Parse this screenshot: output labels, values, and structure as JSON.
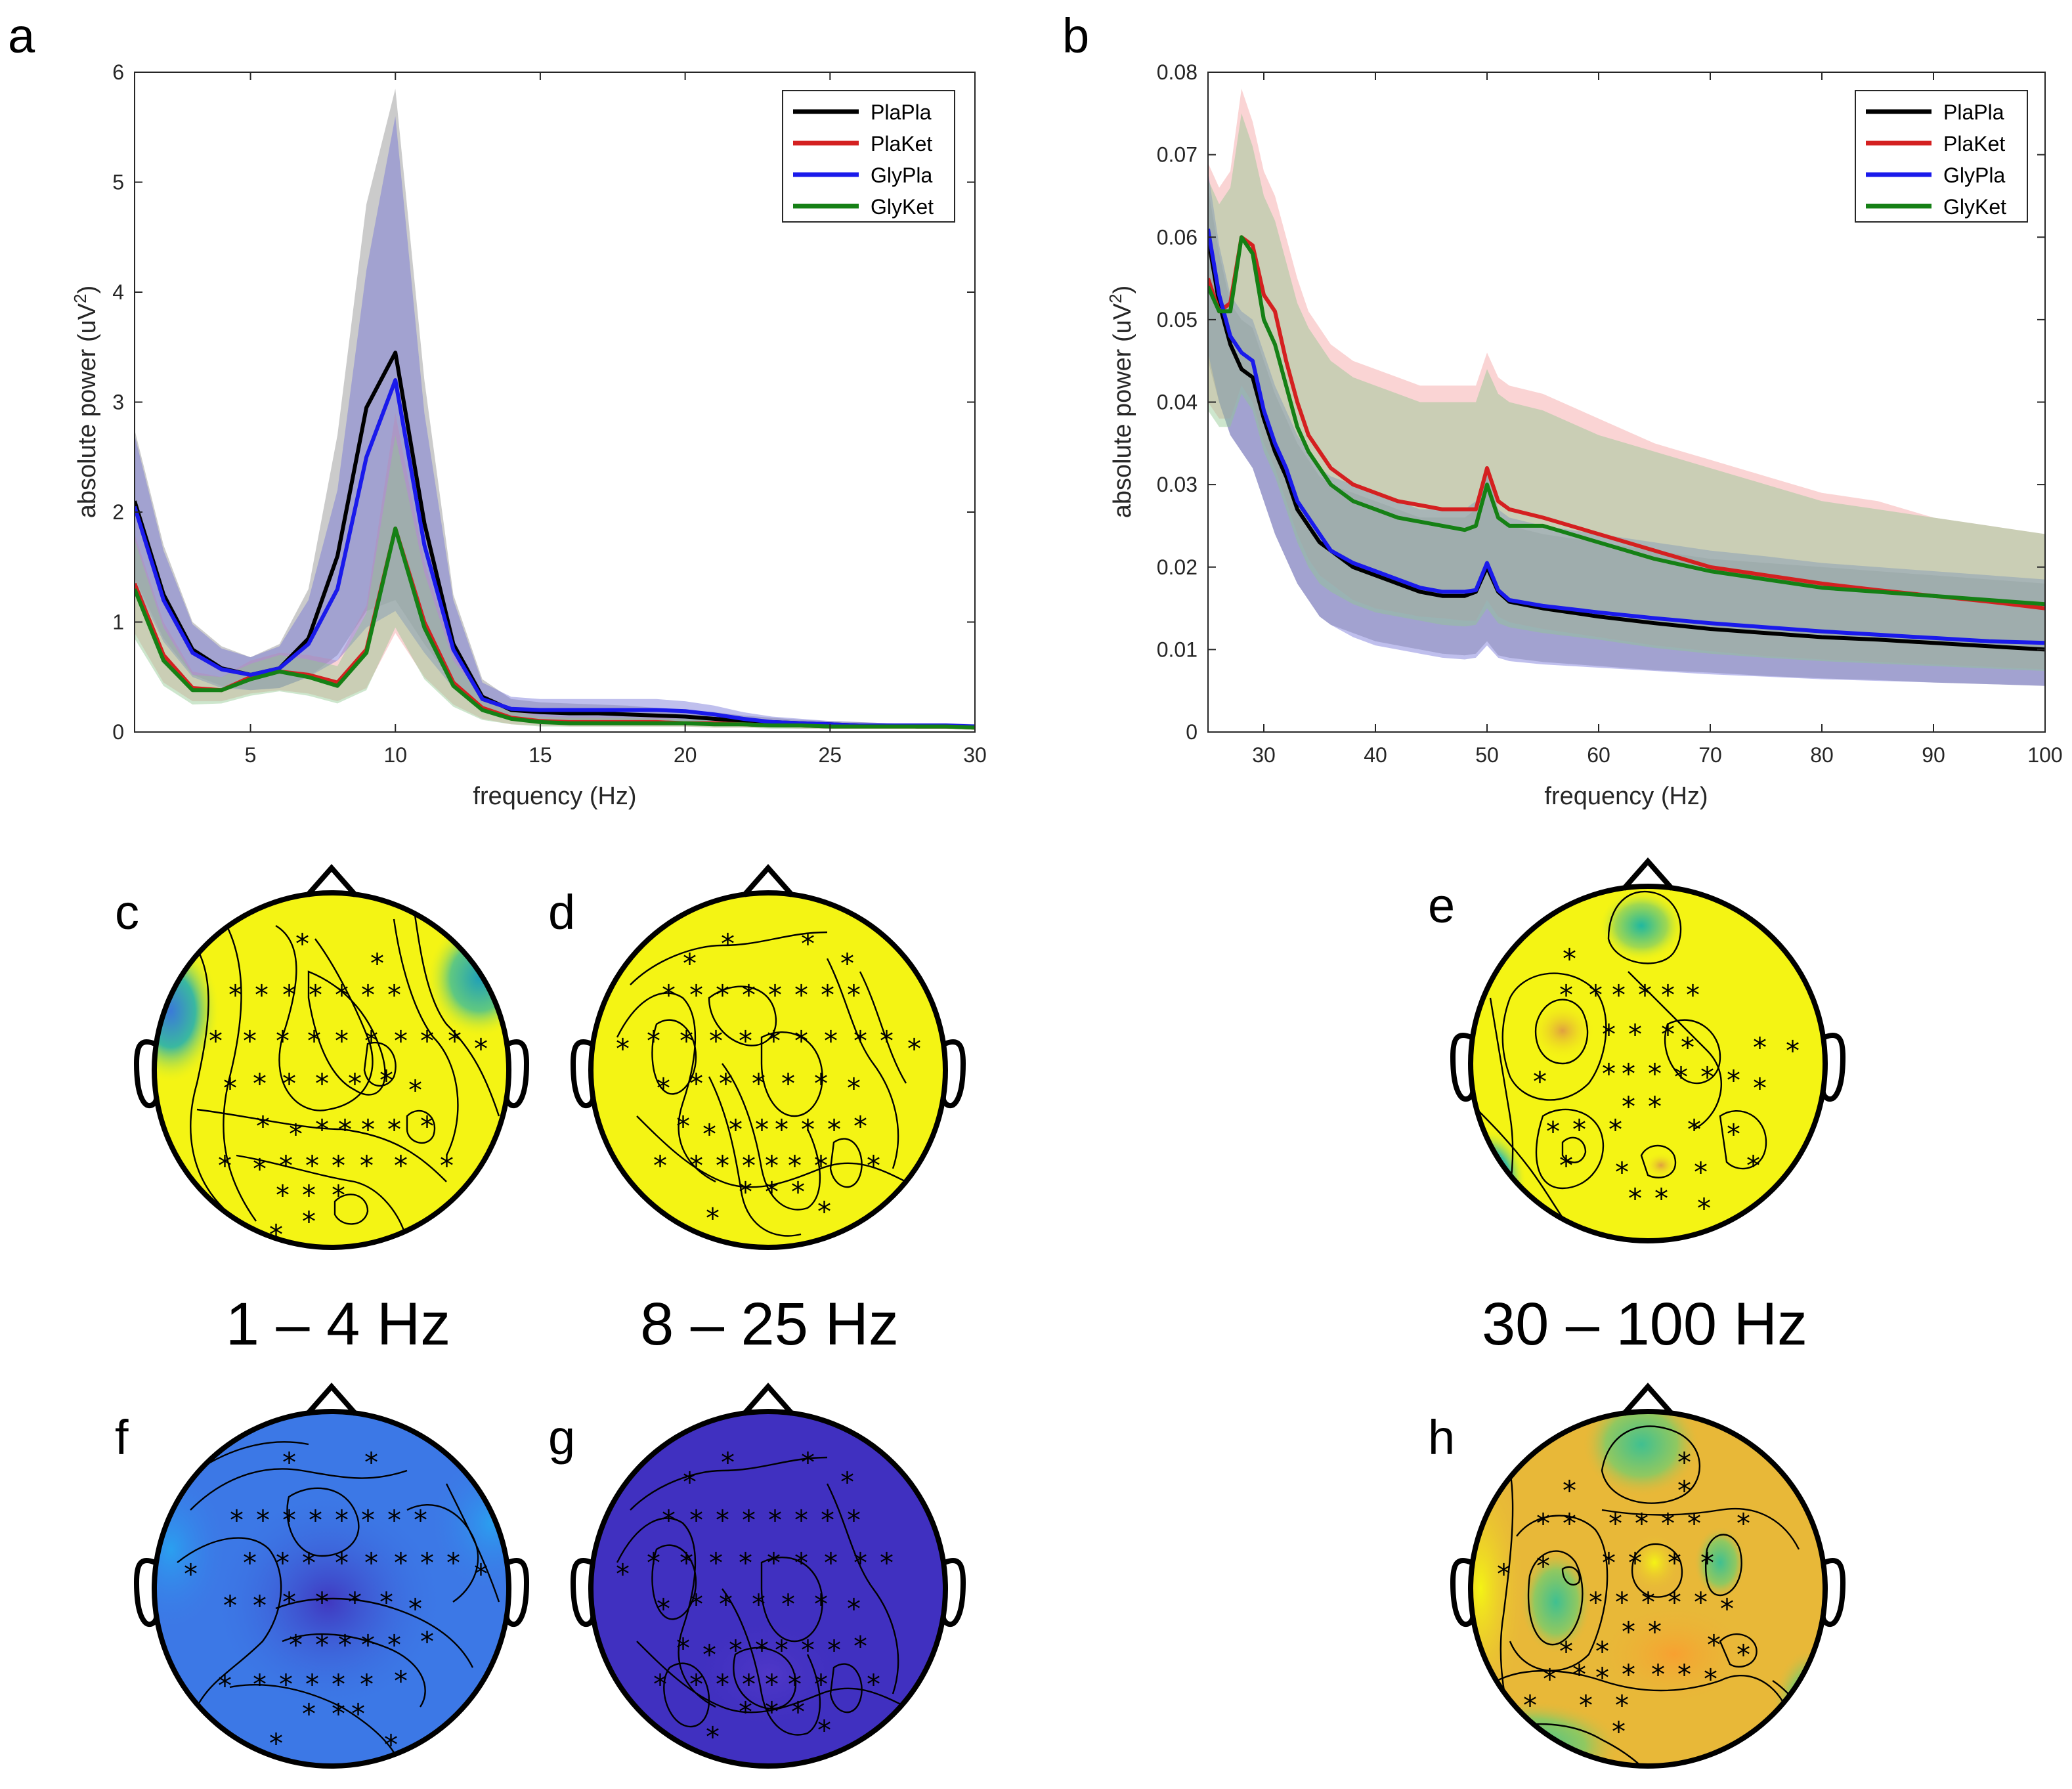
{
  "panels": {
    "a": "a",
    "b": "b",
    "c": "c",
    "d": "d",
    "e": "e",
    "f": "f",
    "g": "g",
    "h": "h"
  },
  "band_labels": {
    "delta": "1 – 4 Hz",
    "alpha_beta": "8 – 25 Hz",
    "gamma": "30 – 100 Hz"
  },
  "colors": {
    "PlaPla": "#000000",
    "PlaKet": "#d42020",
    "GlyPla": "#1a1aeb",
    "GlyKet": "#158015",
    "band_PlaPla": "#8c8c8c",
    "band_PlaKet": "#f4a0a0",
    "band_GlyPla": "#7070d8",
    "band_GlyKet": "#90c890"
  },
  "chart_data": [
    {
      "id": "a",
      "type": "line",
      "xlabel": "frequency (Hz)",
      "ylabel_main": "absolute power (uV",
      "ylabel_sup": "2",
      "ylabel_end": ")",
      "xlim": [
        1,
        30
      ],
      "ylim": [
        0,
        6
      ],
      "xticks": [
        5,
        10,
        15,
        20,
        25,
        30
      ],
      "yticks": [
        0,
        1,
        2,
        3,
        4,
        5,
        6
      ],
      "legend_position": "top-right",
      "x": [
        1,
        2,
        3,
        4,
        5,
        6,
        7,
        8,
        9,
        10,
        11,
        12,
        13,
        14,
        15,
        16,
        17,
        18,
        19,
        20,
        21,
        22,
        23,
        24,
        25,
        26,
        27,
        28,
        29,
        30
      ],
      "series": [
        {
          "name": "PlaPla",
          "values": [
            2.1,
            1.25,
            0.75,
            0.58,
            0.52,
            0.58,
            0.85,
            1.6,
            2.95,
            3.45,
            1.9,
            0.8,
            0.32,
            0.2,
            0.18,
            0.17,
            0.17,
            0.16,
            0.15,
            0.14,
            0.12,
            0.1,
            0.09,
            0.08,
            0.07,
            0.06,
            0.06,
            0.05,
            0.05,
            0.05
          ],
          "lower": [
            1.4,
            0.85,
            0.52,
            0.42,
            0.38,
            0.4,
            0.5,
            0.7,
            1.1,
            1.2,
            0.8,
            0.45,
            0.2,
            0.12,
            0.1,
            0.1,
            0.1,
            0.1,
            0.09,
            0.08,
            0.07,
            0.06,
            0.05,
            0.05,
            0.04,
            0.04,
            0.04,
            0.03,
            0.03,
            0.03
          ],
          "upper": [
            2.75,
            1.7,
            1.0,
            0.78,
            0.68,
            0.8,
            1.3,
            2.7,
            4.8,
            5.85,
            3.2,
            1.25,
            0.48,
            0.3,
            0.27,
            0.26,
            0.25,
            0.24,
            0.22,
            0.2,
            0.18,
            0.15,
            0.13,
            0.11,
            0.1,
            0.09,
            0.08,
            0.07,
            0.07,
            0.07
          ]
        },
        {
          "name": "PlaKet",
          "values": [
            1.35,
            0.7,
            0.4,
            0.38,
            0.5,
            0.55,
            0.52,
            0.45,
            0.75,
            1.85,
            1.0,
            0.45,
            0.22,
            0.13,
            0.1,
            0.09,
            0.09,
            0.09,
            0.09,
            0.08,
            0.08,
            0.07,
            0.06,
            0.06,
            0.05,
            0.05,
            0.05,
            0.05,
            0.05,
            0.04
          ],
          "lower": [
            0.9,
            0.45,
            0.28,
            0.28,
            0.35,
            0.38,
            0.35,
            0.28,
            0.4,
            0.9,
            0.5,
            0.25,
            0.12,
            0.07,
            0.06,
            0.05,
            0.05,
            0.05,
            0.05,
            0.05,
            0.04,
            0.04,
            0.04,
            0.03,
            0.03,
            0.03,
            0.03,
            0.03,
            0.03,
            0.02
          ],
          "upper": [
            1.8,
            1.0,
            0.55,
            0.5,
            0.65,
            0.72,
            0.7,
            0.65,
            1.15,
            2.9,
            1.55,
            0.7,
            0.35,
            0.2,
            0.15,
            0.14,
            0.14,
            0.13,
            0.13,
            0.12,
            0.11,
            0.1,
            0.09,
            0.08,
            0.08,
            0.07,
            0.07,
            0.07,
            0.07,
            0.06
          ]
        },
        {
          "name": "GlyPla",
          "values": [
            2.05,
            1.2,
            0.72,
            0.57,
            0.52,
            0.58,
            0.8,
            1.3,
            2.5,
            3.2,
            1.7,
            0.75,
            0.3,
            0.21,
            0.2,
            0.2,
            0.2,
            0.2,
            0.2,
            0.19,
            0.16,
            0.12,
            0.09,
            0.08,
            0.07,
            0.06,
            0.06,
            0.06,
            0.06,
            0.05
          ],
          "lower": [
            1.35,
            0.82,
            0.5,
            0.4,
            0.38,
            0.4,
            0.5,
            0.65,
            0.95,
            1.1,
            0.72,
            0.4,
            0.18,
            0.12,
            0.11,
            0.11,
            0.11,
            0.11,
            0.1,
            0.1,
            0.09,
            0.07,
            0.05,
            0.05,
            0.04,
            0.04,
            0.04,
            0.04,
            0.03,
            0.03
          ],
          "upper": [
            2.7,
            1.65,
            0.98,
            0.76,
            0.68,
            0.78,
            1.2,
            2.2,
            4.2,
            5.6,
            2.9,
            1.2,
            0.45,
            0.32,
            0.3,
            0.3,
            0.3,
            0.3,
            0.3,
            0.28,
            0.24,
            0.18,
            0.14,
            0.12,
            0.1,
            0.09,
            0.08,
            0.08,
            0.08,
            0.07
          ]
        },
        {
          "name": "GlyKet",
          "values": [
            1.3,
            0.65,
            0.38,
            0.38,
            0.48,
            0.55,
            0.5,
            0.42,
            0.72,
            1.85,
            0.95,
            0.42,
            0.2,
            0.12,
            0.09,
            0.08,
            0.08,
            0.08,
            0.08,
            0.08,
            0.07,
            0.07,
            0.06,
            0.06,
            0.05,
            0.05,
            0.05,
            0.05,
            0.05,
            0.04
          ],
          "lower": [
            0.85,
            0.42,
            0.25,
            0.26,
            0.33,
            0.37,
            0.33,
            0.26,
            0.38,
            0.95,
            0.48,
            0.23,
            0.11,
            0.07,
            0.05,
            0.05,
            0.05,
            0.05,
            0.05,
            0.05,
            0.04,
            0.04,
            0.03,
            0.03,
            0.03,
            0.03,
            0.03,
            0.03,
            0.03,
            0.02
          ],
          "upper": [
            1.75,
            0.95,
            0.52,
            0.5,
            0.62,
            0.7,
            0.66,
            0.6,
            1.08,
            2.7,
            1.45,
            0.65,
            0.32,
            0.19,
            0.14,
            0.13,
            0.13,
            0.13,
            0.12,
            0.12,
            0.11,
            0.1,
            0.09,
            0.08,
            0.08,
            0.07,
            0.07,
            0.07,
            0.07,
            0.06
          ]
        }
      ]
    },
    {
      "id": "b",
      "type": "line",
      "xlabel": "frequency (Hz)",
      "ylabel_main": "absolute power (uV",
      "ylabel_sup": "2",
      "ylabel_end": ")",
      "xlim": [
        25,
        100
      ],
      "ylim": [
        0,
        0.08
      ],
      "xticks": [
        30,
        40,
        50,
        60,
        70,
        80,
        90,
        100
      ],
      "yticks": [
        0,
        0.01,
        0.02,
        0.03,
        0.04,
        0.05,
        0.06,
        0.07,
        0.08
      ],
      "legend_position": "top-right",
      "x": [
        25,
        26,
        27,
        28,
        29,
        30,
        31,
        32,
        33,
        34,
        35,
        36,
        38,
        40,
        42,
        44,
        46,
        48,
        49,
        50,
        51,
        52,
        55,
        60,
        65,
        70,
        75,
        80,
        85,
        90,
        95,
        100
      ],
      "series": [
        {
          "name": "PlaPla",
          "values": [
            0.06,
            0.052,
            0.047,
            0.044,
            0.043,
            0.038,
            0.034,
            0.031,
            0.027,
            0.025,
            0.023,
            0.022,
            0.02,
            0.019,
            0.018,
            0.017,
            0.0165,
            0.0165,
            0.017,
            0.02,
            0.017,
            0.0158,
            0.015,
            0.014,
            0.0132,
            0.0125,
            0.012,
            0.0115,
            0.0112,
            0.0108,
            0.0104,
            0.01
          ],
          "lower": [
            0.045,
            0.04,
            0.036,
            0.034,
            0.032,
            0.028,
            0.024,
            0.021,
            0.018,
            0.016,
            0.014,
            0.013,
            0.012,
            0.011,
            0.0105,
            0.01,
            0.0095,
            0.0093,
            0.0095,
            0.011,
            0.0093,
            0.009,
            0.0085,
            0.008,
            0.0075,
            0.0072,
            0.0068,
            0.0065,
            0.0063,
            0.006,
            0.0058,
            0.0056
          ],
          "upper": [
            0.066,
            0.058,
            0.052,
            0.05,
            0.049,
            0.045,
            0.041,
            0.038,
            0.035,
            0.033,
            0.031,
            0.03,
            0.029,
            0.028,
            0.027,
            0.026,
            0.026,
            0.026,
            0.027,
            0.031,
            0.026,
            0.025,
            0.024,
            0.023,
            0.022,
            0.021,
            0.0205,
            0.02,
            0.0195,
            0.019,
            0.0185,
            0.018
          ]
        },
        {
          "name": "PlaKet",
          "values": [
            0.055,
            0.051,
            0.052,
            0.06,
            0.059,
            0.053,
            0.051,
            0.045,
            0.04,
            0.036,
            0.034,
            0.032,
            0.03,
            0.029,
            0.028,
            0.0275,
            0.027,
            0.027,
            0.027,
            0.032,
            0.028,
            0.027,
            0.026,
            0.024,
            0.022,
            0.02,
            0.019,
            0.018,
            0.0172,
            0.0165,
            0.0158,
            0.015
          ],
          "lower": [
            0.04,
            0.038,
            0.038,
            0.042,
            0.04,
            0.035,
            0.032,
            0.028,
            0.024,
            0.021,
            0.019,
            0.018,
            0.016,
            0.015,
            0.0145,
            0.014,
            0.0138,
            0.0135,
            0.0135,
            0.016,
            0.014,
            0.0133,
            0.0125,
            0.0115,
            0.0105,
            0.0098,
            0.0092,
            0.0088,
            0.0085,
            0.0082,
            0.0079,
            0.0076
          ],
          "upper": [
            0.069,
            0.066,
            0.068,
            0.078,
            0.074,
            0.068,
            0.065,
            0.06,
            0.055,
            0.051,
            0.049,
            0.047,
            0.045,
            0.044,
            0.043,
            0.042,
            0.042,
            0.042,
            0.042,
            0.046,
            0.043,
            0.042,
            0.041,
            0.038,
            0.035,
            0.033,
            0.031,
            0.029,
            0.028,
            0.026,
            0.025,
            0.024
          ]
        },
        {
          "name": "GlyPla",
          "values": [
            0.061,
            0.053,
            0.048,
            0.046,
            0.045,
            0.039,
            0.035,
            0.032,
            0.028,
            0.026,
            0.024,
            0.022,
            0.0205,
            0.0195,
            0.0185,
            0.0175,
            0.017,
            0.017,
            0.0172,
            0.0205,
            0.0172,
            0.016,
            0.0153,
            0.0145,
            0.0138,
            0.0132,
            0.0127,
            0.0122,
            0.0118,
            0.0114,
            0.011,
            0.0108
          ],
          "lower": [
            0.046,
            0.04,
            0.036,
            0.034,
            0.032,
            0.028,
            0.024,
            0.021,
            0.018,
            0.016,
            0.014,
            0.013,
            0.0115,
            0.0105,
            0.01,
            0.0095,
            0.009,
            0.0088,
            0.009,
            0.0105,
            0.009,
            0.0086,
            0.0082,
            0.0078,
            0.0074,
            0.007,
            0.0067,
            0.0064,
            0.0062,
            0.006,
            0.0058,
            0.0056
          ],
          "upper": [
            0.068,
            0.059,
            0.053,
            0.051,
            0.05,
            0.046,
            0.042,
            0.039,
            0.036,
            0.034,
            0.032,
            0.031,
            0.03,
            0.029,
            0.028,
            0.027,
            0.027,
            0.027,
            0.028,
            0.032,
            0.027,
            0.026,
            0.025,
            0.024,
            0.023,
            0.022,
            0.0213,
            0.0205,
            0.02,
            0.0195,
            0.019,
            0.0185
          ]
        },
        {
          "name": "GlyKet",
          "values": [
            0.054,
            0.051,
            0.051,
            0.06,
            0.058,
            0.05,
            0.047,
            0.042,
            0.037,
            0.034,
            0.032,
            0.03,
            0.028,
            0.027,
            0.026,
            0.0255,
            0.025,
            0.0245,
            0.025,
            0.03,
            0.026,
            0.025,
            0.025,
            0.023,
            0.021,
            0.0195,
            0.0185,
            0.0175,
            0.017,
            0.0165,
            0.016,
            0.0155
          ],
          "lower": [
            0.039,
            0.037,
            0.037,
            0.041,
            0.039,
            0.034,
            0.031,
            0.027,
            0.023,
            0.02,
            0.018,
            0.017,
            0.0155,
            0.0145,
            0.014,
            0.0135,
            0.013,
            0.0128,
            0.013,
            0.015,
            0.0132,
            0.0127,
            0.012,
            0.0112,
            0.0102,
            0.0095,
            0.009,
            0.0086,
            0.0083,
            0.008,
            0.0077,
            0.0074
          ],
          "upper": [
            0.067,
            0.064,
            0.066,
            0.075,
            0.071,
            0.065,
            0.062,
            0.057,
            0.052,
            0.049,
            0.047,
            0.045,
            0.043,
            0.042,
            0.041,
            0.04,
            0.04,
            0.04,
            0.04,
            0.044,
            0.041,
            0.04,
            0.039,
            0.036,
            0.034,
            0.032,
            0.03,
            0.028,
            0.027,
            0.026,
            0.025,
            0.024
          ]
        }
      ]
    },
    {
      "id": "topomaps",
      "type": "heatmap",
      "maps": [
        {
          "panel": "c",
          "band": "1 – 4 Hz",
          "base_color": "#f4f414"
        },
        {
          "panel": "d",
          "band": "8 – 25 Hz",
          "base_color": "#f4f414"
        },
        {
          "panel": "e",
          "band": "30 – 100 Hz",
          "base_color": "#f4f414"
        },
        {
          "panel": "f",
          "band": "1 – 4 Hz",
          "base_color": "#3c78e6"
        },
        {
          "panel": "g",
          "band": "8 – 25 Hz",
          "base_color": "#4030c0"
        },
        {
          "panel": "h",
          "band": "30 – 100 Hz",
          "base_color": "#e8b838"
        }
      ]
    }
  ]
}
